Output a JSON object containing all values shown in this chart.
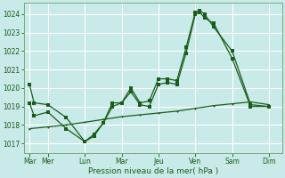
{
  "xlabel": "Pression niveau de la mer( hPa )",
  "bg_color": "#c8eae8",
  "grid_color": "#b0d8d0",
  "line_color": "#1a5c1a",
  "ylim": [
    1016.5,
    1024.6
  ],
  "yticks": [
    1017,
    1018,
    1019,
    1020,
    1021,
    1022,
    1023,
    1024
  ],
  "day_labels": [
    "Mar",
    "Mer",
    "",
    "Lun",
    "",
    "Mar",
    "",
    "Jeu",
    "",
    "Ven",
    "",
    "Sam",
    "",
    "Dim"
  ],
  "day_positions": [
    0,
    1,
    2,
    3,
    4,
    5,
    6,
    7,
    8,
    9,
    10,
    11,
    12,
    13
  ],
  "xtick_labels": [
    "Mar",
    "Mer",
    "Lun",
    "Mar",
    "Jeu",
    "Ven",
    "Sam",
    "Dim"
  ],
  "xtick_positions": [
    0,
    1,
    3,
    5,
    7,
    9,
    11,
    13
  ],
  "xlim": [
    -0.3,
    13.7
  ],
  "line1_x": [
    0.0,
    0.25,
    1.0,
    2.0,
    3.0,
    3.5,
    4.0,
    4.5,
    5.0,
    5.5,
    6.0,
    6.5,
    7.0,
    7.5,
    8.0,
    8.5,
    9.0,
    9.25,
    9.5,
    10.0,
    11.0,
    12.0,
    13.0
  ],
  "line1_y": [
    1020.2,
    1019.2,
    1019.1,
    1018.4,
    1017.1,
    1017.5,
    1018.1,
    1019.2,
    1019.2,
    1020.0,
    1019.2,
    1019.3,
    1020.5,
    1020.5,
    1020.4,
    1022.2,
    1024.1,
    1024.2,
    1024.0,
    1023.3,
    1022.0,
    1019.1,
    1019.0
  ],
  "line2_x": [
    0.0,
    0.25,
    1.0,
    2.0,
    3.0,
    3.5,
    4.0,
    4.5,
    5.0,
    5.5,
    6.0,
    6.5,
    7.0,
    7.5,
    8.0,
    8.5,
    9.0,
    9.25,
    9.5,
    10.0,
    11.0,
    12.0,
    13.0
  ],
  "line2_y": [
    1019.2,
    1018.5,
    1018.7,
    1017.8,
    1017.1,
    1017.4,
    1018.1,
    1019.0,
    1019.2,
    1019.8,
    1019.1,
    1019.0,
    1020.2,
    1020.3,
    1020.2,
    1021.9,
    1024.0,
    1024.1,
    1023.8,
    1023.5,
    1021.6,
    1019.0,
    1019.0
  ],
  "line3_x": [
    0.0,
    1.0,
    2.0,
    3.0,
    4.0,
    5.0,
    6.0,
    7.0,
    8.0,
    9.0,
    10.0,
    11.0,
    12.0,
    13.0
  ],
  "line3_y": [
    1017.8,
    1017.9,
    1018.0,
    1018.15,
    1018.3,
    1018.45,
    1018.55,
    1018.65,
    1018.75,
    1018.9,
    1019.05,
    1019.15,
    1019.25,
    1019.1
  ],
  "marker_size": 2.5,
  "line_width": 0.9
}
